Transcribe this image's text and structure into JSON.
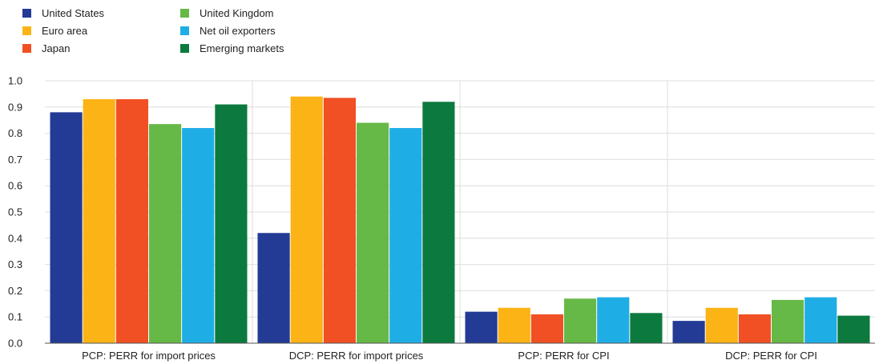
{
  "chart_data": {
    "type": "bar",
    "categories": [
      "PCP: PERR for import prices",
      "DCP: PERR for import prices",
      "PCP: PERR for CPI",
      "DCP: PERR for CPI"
    ],
    "series": [
      {
        "name": "United States",
        "color": "#233b94",
        "values": [
          0.88,
          0.42,
          0.12,
          0.085
        ]
      },
      {
        "name": "Euro area",
        "color": "#fcb316",
        "values": [
          0.93,
          0.94,
          0.135,
          0.135
        ]
      },
      {
        "name": "Japan",
        "color": "#f05023",
        "values": [
          0.93,
          0.935,
          0.11,
          0.11
        ]
      },
      {
        "name": "United Kingdom",
        "color": "#66b947",
        "values": [
          0.835,
          0.84,
          0.17,
          0.165
        ]
      },
      {
        "name": "Net oil exporters",
        "color": "#1fade5",
        "values": [
          0.82,
          0.82,
          0.175,
          0.175
        ]
      },
      {
        "name": "Emerging markets",
        "color": "#0c7a3e",
        "values": [
          0.91,
          0.92,
          0.115,
          0.105
        ]
      }
    ],
    "ylim": [
      0,
      1.0
    ],
    "yticks": [
      "0.0",
      "0.1",
      "0.2",
      "0.3",
      "0.4",
      "0.5",
      "0.6",
      "0.7",
      "0.8",
      "0.9",
      "1.0"
    ],
    "grid": true,
    "legend_position": "top-left"
  }
}
